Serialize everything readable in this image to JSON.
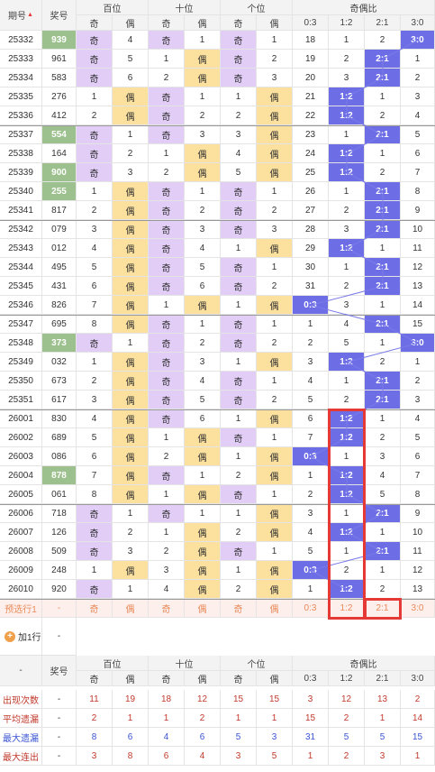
{
  "header": {
    "period": "期号",
    "award": "奖号",
    "groups": [
      "百位",
      "十位",
      "个位",
      "奇偶比"
    ],
    "odd": "奇",
    "even": "偶",
    "ratios": [
      "0:3",
      "1:2",
      "2:1",
      "3:0"
    ]
  },
  "colors": {
    "odd": "#e2cdf7",
    "even": "#fbe09e",
    "hit": "#6d6de6",
    "award": "#9dc18e",
    "box": "#e53935"
  },
  "rows": [
    {
      "p": "25332",
      "a": "939",
      "g": true,
      "h": [
        "o",
        4
      ],
      "t": [
        "o",
        1
      ],
      "u": [
        "o",
        1
      ],
      "r": [
        18,
        1,
        2,
        "3:0"
      ]
    },
    {
      "p": "25333",
      "a": "961",
      "g": false,
      "h": [
        "o",
        5
      ],
      "t": [
        1,
        "e"
      ],
      "u": [
        "o",
        2
      ],
      "r": [
        19,
        2,
        "2:1",
        1
      ]
    },
    {
      "p": "25334",
      "a": "583",
      "g": false,
      "h": [
        "o",
        6
      ],
      "t": [
        2,
        "e"
      ],
      "u": [
        "o",
        3
      ],
      "r": [
        20,
        3,
        "2:1",
        2
      ]
    },
    {
      "p": "25335",
      "a": "276",
      "g": false,
      "h": [
        1,
        "e"
      ],
      "t": [
        "o",
        1
      ],
      "u": [
        1,
        "e"
      ],
      "r": [
        21,
        "1:2",
        1,
        3
      ]
    },
    {
      "p": "25336",
      "a": "412",
      "g": false,
      "h": [
        2,
        "e"
      ],
      "t": [
        "o",
        2
      ],
      "u": [
        2,
        "e"
      ],
      "r": [
        22,
        "1:2",
        2,
        4
      ]
    },
    {
      "p": "25337",
      "a": "554",
      "g": true,
      "h": [
        "o",
        1
      ],
      "t": [
        "o",
        3
      ],
      "u": [
        3,
        "e"
      ],
      "r": [
        23,
        1,
        "2:1",
        5
      ]
    },
    {
      "p": "25338",
      "a": "164",
      "g": false,
      "h": [
        "o",
        2
      ],
      "t": [
        1,
        "e"
      ],
      "u": [
        4,
        "e"
      ],
      "r": [
        24,
        "1:2",
        1,
        6
      ]
    },
    {
      "p": "25339",
      "a": "900",
      "g": true,
      "h": [
        "o",
        3
      ],
      "t": [
        2,
        "e"
      ],
      "u": [
        5,
        "e"
      ],
      "r": [
        25,
        "1:2",
        2,
        7
      ]
    },
    {
      "p": "25340",
      "a": "255",
      "g": true,
      "h": [
        1,
        "e"
      ],
      "t": [
        "o",
        1
      ],
      "u": [
        "o",
        1
      ],
      "r": [
        26,
        1,
        "2:1",
        8
      ]
    },
    {
      "p": "25341",
      "a": "817",
      "g": false,
      "h": [
        2,
        "e"
      ],
      "t": [
        "o",
        2
      ],
      "u": [
        "o",
        2
      ],
      "r": [
        27,
        2,
        "2:1",
        9
      ]
    },
    {
      "p": "25342",
      "a": "079",
      "g": false,
      "h": [
        3,
        "e"
      ],
      "t": [
        "o",
        3
      ],
      "u": [
        "o",
        3
      ],
      "r": [
        28,
        3,
        "2:1",
        10
      ]
    },
    {
      "p": "25343",
      "a": "012",
      "g": false,
      "h": [
        4,
        "e"
      ],
      "t": [
        "o",
        4
      ],
      "u": [
        1,
        "e"
      ],
      "r": [
        29,
        "1:2",
        1,
        11
      ]
    },
    {
      "p": "25344",
      "a": "495",
      "g": false,
      "h": [
        5,
        "e"
      ],
      "t": [
        "o",
        5
      ],
      "u": [
        "o",
        1
      ],
      "r": [
        30,
        1,
        "2:1",
        12
      ]
    },
    {
      "p": "25345",
      "a": "431",
      "g": false,
      "h": [
        6,
        "e"
      ],
      "t": [
        "o",
        6
      ],
      "u": [
        "o",
        2
      ],
      "r": [
        31,
        2,
        "2:1",
        13
      ]
    },
    {
      "p": "25346",
      "a": "826",
      "g": false,
      "h": [
        7,
        "e"
      ],
      "t": [
        1,
        "e"
      ],
      "u": [
        1,
        "e"
      ],
      "r": [
        "0:3",
        3,
        1,
        14
      ]
    },
    {
      "p": "25347",
      "a": "695",
      "g": false,
      "h": [
        8,
        "e"
      ],
      "t": [
        "o",
        1
      ],
      "u": [
        "o",
        1
      ],
      "r": [
        1,
        4,
        "2:1",
        15
      ]
    },
    {
      "p": "25348",
      "a": "373",
      "g": true,
      "h": [
        "o",
        1
      ],
      "t": [
        "o",
        2
      ],
      "u": [
        "o",
        2
      ],
      "r": [
        2,
        5,
        1,
        "3:0"
      ]
    },
    {
      "p": "25349",
      "a": "032",
      "g": false,
      "h": [
        1,
        "e"
      ],
      "t": [
        "o",
        3
      ],
      "u": [
        1,
        "e"
      ],
      "r": [
        3,
        "1:2",
        2,
        1
      ]
    },
    {
      "p": "25350",
      "a": "673",
      "g": false,
      "h": [
        2,
        "e"
      ],
      "t": [
        "o",
        4
      ],
      "u": [
        "o",
        1
      ],
      "r": [
        4,
        1,
        "2:1",
        2
      ]
    },
    {
      "p": "25351",
      "a": "617",
      "g": false,
      "h": [
        3,
        "e"
      ],
      "t": [
        "o",
        5
      ],
      "u": [
        "o",
        2
      ],
      "r": [
        5,
        2,
        "2:1",
        3
      ]
    },
    {
      "p": "26001",
      "a": "830",
      "g": false,
      "h": [
        4,
        "e"
      ],
      "t": [
        "o",
        6
      ],
      "u": [
        1,
        "e"
      ],
      "r": [
        6,
        "1:2",
        1,
        4
      ]
    },
    {
      "p": "26002",
      "a": "689",
      "g": false,
      "h": [
        5,
        "e"
      ],
      "t": [
        1,
        "e"
      ],
      "u": [
        "o",
        1
      ],
      "r": [
        7,
        "1:2",
        2,
        5
      ]
    },
    {
      "p": "26003",
      "a": "086",
      "g": false,
      "h": [
        6,
        "e"
      ],
      "t": [
        2,
        "e"
      ],
      "u": [
        1,
        "e"
      ],
      "r": [
        "0:3",
        1,
        3,
        6
      ]
    },
    {
      "p": "26004",
      "a": "878",
      "g": true,
      "h": [
        7,
        "e"
      ],
      "t": [
        "o",
        1
      ],
      "u": [
        2,
        "e"
      ],
      "r": [
        1,
        "1:2",
        4,
        7
      ]
    },
    {
      "p": "26005",
      "a": "061",
      "g": false,
      "h": [
        8,
        "e"
      ],
      "t": [
        1,
        "e"
      ],
      "u": [
        "o",
        1
      ],
      "r": [
        2,
        "1:2",
        5,
        8
      ]
    },
    {
      "p": "26006",
      "a": "718",
      "g": false,
      "h": [
        "o",
        1
      ],
      "t": [
        "o",
        1
      ],
      "u": [
        1,
        "e"
      ],
      "r": [
        3,
        1,
        "2:1",
        9
      ]
    },
    {
      "p": "26007",
      "a": "126",
      "g": false,
      "h": [
        "o",
        2
      ],
      "t": [
        1,
        "e"
      ],
      "u": [
        2,
        "e"
      ],
      "r": [
        4,
        "1:2",
        1,
        10
      ]
    },
    {
      "p": "26008",
      "a": "509",
      "g": false,
      "h": [
        "o",
        3
      ],
      "t": [
        2,
        "e"
      ],
      "u": [
        "o",
        1
      ],
      "r": [
        5,
        1,
        "2:1",
        11
      ]
    },
    {
      "p": "26009",
      "a": "248",
      "g": false,
      "h": [
        1,
        "e"
      ],
      "t": [
        3,
        "e"
      ],
      "u": [
        1,
        "e"
      ],
      "r": [
        "0:3",
        2,
        1,
        12
      ]
    },
    {
      "p": "26010",
      "a": "920",
      "g": false,
      "h": [
        "o",
        1
      ],
      "t": [
        4,
        "e"
      ],
      "u": [
        2,
        "e"
      ],
      "r": [
        1,
        "1:2",
        2,
        13
      ]
    }
  ],
  "predict": {
    "label": "预选行1",
    "award": "-",
    "cells": [
      "奇",
      "偶",
      "奇",
      "偶",
      "奇",
      "偶",
      "0:3",
      "1:2",
      "2:1",
      "3:0"
    ]
  },
  "add_row": {
    "label": "加1行",
    "value": "-"
  },
  "footer": {
    "dash": "-",
    "award": "奖号",
    "stats": [
      {
        "label": "出现次数",
        "award": "-",
        "vals": [
          11,
          19,
          18,
          12,
          15,
          15,
          3,
          12,
          13,
          2
        ],
        "cls": "st1"
      },
      {
        "label": "平均遗漏",
        "award": "-",
        "vals": [
          2,
          1,
          1,
          2,
          1,
          1,
          15,
          2,
          1,
          14
        ],
        "cls": "st1"
      },
      {
        "label": "最大遗漏",
        "award": "-",
        "vals": [
          8,
          6,
          4,
          6,
          5,
          3,
          31,
          5,
          5,
          15
        ],
        "cls": "st2"
      },
      {
        "label": "最大连出",
        "award": "-",
        "vals": [
          3,
          8,
          6,
          4,
          3,
          5,
          1,
          2,
          3,
          1
        ],
        "cls": "st1"
      }
    ]
  }
}
